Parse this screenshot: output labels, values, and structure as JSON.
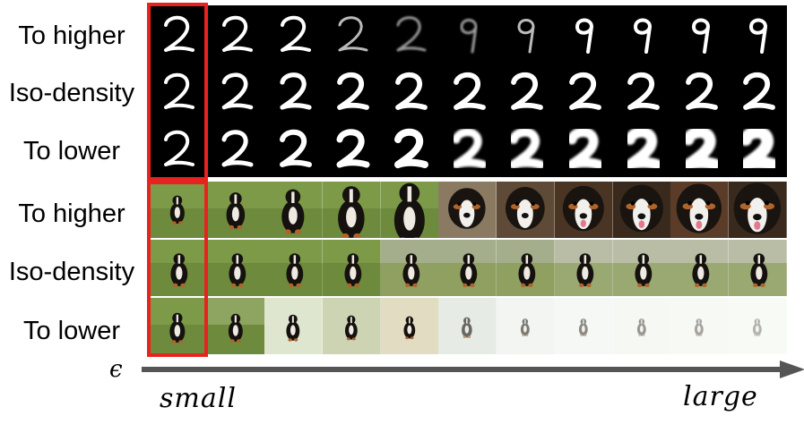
{
  "rows": {
    "mnist": [
      "To higher",
      "Iso-density",
      "To lower"
    ],
    "dog": [
      "To higher",
      "Iso-density",
      "To lower"
    ]
  },
  "axis": {
    "symbol": "ϵ",
    "start_label": "small",
    "end_label": "large"
  },
  "colors": {
    "highlight": "#e8231f",
    "mnist_background": "#000000",
    "axis_arrow": "#555555"
  },
  "mnist_digits": {
    "to_higher": [
      "2",
      "2",
      "2",
      "2",
      "2",
      "9",
      "9",
      "9",
      "9",
      "9",
      "9"
    ],
    "iso_density": [
      "2",
      "2",
      "2",
      "2",
      "2",
      "2",
      "2",
      "2",
      "2",
      "2",
      "2"
    ],
    "to_lower": [
      "2",
      "2",
      "2",
      "2",
      "2",
      "2",
      "2",
      "2",
      "2",
      "2",
      "2"
    ]
  }
}
